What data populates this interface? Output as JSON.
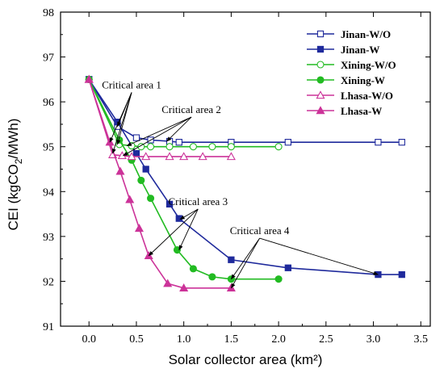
{
  "chart_data": {
    "type": "line",
    "xlabel": "Solar collector area (km²)",
    "ylabel_prefix": "CEI (kgCO",
    "ylabel_sub": "2",
    "ylabel_suffix": "/MWh)",
    "xlim": [
      -0.3,
      3.6
    ],
    "ylim": [
      91,
      98
    ],
    "xticks": [
      0.0,
      0.5,
      1.0,
      1.5,
      2.0,
      2.5,
      3.0,
      3.5
    ],
    "xtick_labels": [
      "0.0",
      "0.5",
      "1.0",
      "1.5",
      "2.0",
      "2.5",
      "3.0",
      "3.5"
    ],
    "yticks": [
      91,
      92,
      93,
      94,
      95,
      96,
      97,
      98
    ],
    "ytick_labels": [
      "91",
      "92",
      "93",
      "94",
      "95",
      "96",
      "97",
      "98"
    ],
    "legend_position": "top-right",
    "series": [
      {
        "name": "Jinan-W/O",
        "color": "#1f2a9c",
        "marker": "square-open",
        "x": [
          0,
          0.3,
          0.5,
          0.65,
          0.85,
          0.95,
          1.5,
          2.1,
          3.05,
          3.3
        ],
        "y": [
          96.5,
          95.45,
          95.2,
          95.15,
          95.12,
          95.1,
          95.1,
          95.1,
          95.1,
          95.1
        ]
      },
      {
        "name": "Jinan-W",
        "color": "#1f2a9c",
        "marker": "square-filled",
        "x": [
          0,
          0.3,
          0.5,
          0.6,
          0.85,
          0.95,
          1.5,
          2.1,
          3.05,
          3.3
        ],
        "y": [
          96.5,
          95.55,
          94.85,
          94.5,
          93.72,
          93.4,
          92.48,
          92.3,
          92.15,
          92.15
        ]
      },
      {
        "name": "Xining-W/O",
        "color": "#22bb22",
        "marker": "circle-open",
        "x": [
          0,
          0.32,
          0.45,
          0.55,
          0.65,
          0.85,
          1.1,
          1.3,
          1.5,
          2.0
        ],
        "y": [
          96.5,
          95.05,
          95.02,
          95.0,
          95.0,
          95.0,
          95.0,
          95.0,
          95.0,
          95.0
        ]
      },
      {
        "name": "Xining-W",
        "color": "#22bb22",
        "marker": "circle-filled",
        "x": [
          0,
          0.32,
          0.45,
          0.55,
          0.65,
          0.93,
          1.1,
          1.3,
          1.5,
          2.0
        ],
        "y": [
          96.5,
          95.15,
          94.7,
          94.25,
          93.85,
          92.7,
          92.28,
          92.1,
          92.05,
          92.05
        ]
      },
      {
        "name": "Lhasa-W/O",
        "color": "#cc3399",
        "marker": "triangle-open",
        "x": [
          0,
          0.25,
          0.35,
          0.45,
          0.6,
          0.85,
          1.0,
          1.2,
          1.5
        ],
        "y": [
          96.5,
          94.82,
          94.8,
          94.78,
          94.78,
          94.78,
          94.78,
          94.78,
          94.78
        ]
      },
      {
        "name": "Lhasa-W",
        "color": "#cc3399",
        "marker": "triangle-filled",
        "x": [
          0,
          0.22,
          0.33,
          0.43,
          0.53,
          0.63,
          0.83,
          1.0,
          1.5
        ],
        "y": [
          96.5,
          95.1,
          94.45,
          93.82,
          93.18,
          92.57,
          91.95,
          91.85,
          91.85
        ]
      }
    ],
    "annotations": [
      {
        "text": "Critical area 1",
        "label_at": [
          0.45,
          96.3
        ],
        "targets": [
          [
            0.3,
            95.45
          ],
          [
            0.25,
            94.85
          ],
          [
            0.22,
            95.1
          ],
          [
            0.3,
            95.05
          ]
        ]
      },
      {
        "text": "Critical area 2",
        "label_at": [
          1.08,
          95.75
        ],
        "targets": [
          [
            0.82,
            95.12
          ],
          [
            0.4,
            95.02
          ],
          [
            0.36,
            94.8
          ]
        ]
      },
      {
        "text": "Critical area 3",
        "label_at": [
          1.15,
          93.7
        ],
        "targets": [
          [
            0.96,
            93.38
          ],
          [
            0.95,
            92.7
          ],
          [
            0.63,
            92.57
          ]
        ]
      },
      {
        "text": "Critical area 4",
        "label_at": [
          1.8,
          93.05
        ],
        "targets": [
          [
            3.05,
            92.15
          ],
          [
            1.5,
            92.05
          ],
          [
            1.5,
            91.85
          ]
        ]
      }
    ]
  }
}
